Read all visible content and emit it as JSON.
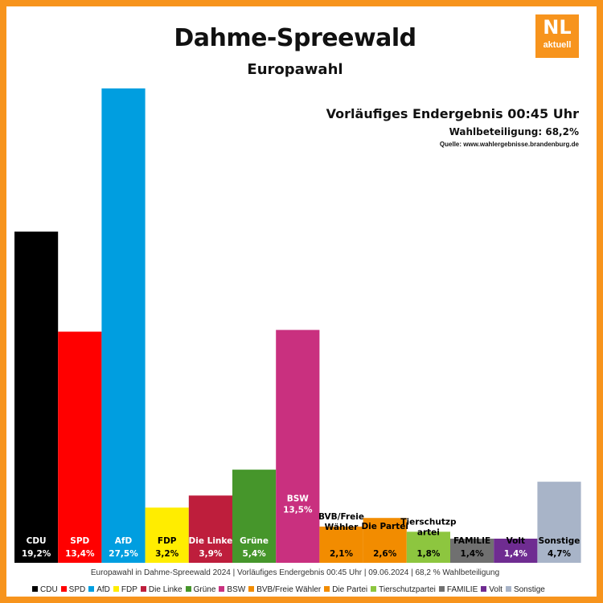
{
  "header": {
    "title": "Dahme-Spreewald",
    "subtitle": "Europawahl",
    "logo_main": "NL",
    "logo_sub": "aktuell"
  },
  "info": {
    "result_title": "Vorläufiges Endergebnis 00:45 Uhr",
    "turnout_label": "Wahlbeteiligung:",
    "turnout_value": "68,2%",
    "source": "Quelle: www.wahlergebnisse.brandenburg.de"
  },
  "footer": {
    "text": "Europawahl in Dahme-Spreewald 2024 | Vorläufiges Endergebnis 00:45 Uhr | 09.06.2024 | 68,2 % Wahlbeteiligung"
  },
  "chart_data": {
    "type": "bar",
    "title": "Dahme-Spreewald",
    "subtitle": "Europawahl",
    "ylim": [
      0,
      27.5
    ],
    "grid": false,
    "legend_position": "bottom",
    "categories": [
      "CDU",
      "SPD",
      "AfD",
      "FDP",
      "Die Linke",
      "Grüne",
      "BSW",
      "BVB/Freie Wähler",
      "Die Partei",
      "Tierschutzpartei",
      "FAMILIE",
      "Volt",
      "Sonstige"
    ],
    "label_lines": [
      [
        "CDU"
      ],
      [
        "SPD"
      ],
      [
        "AfD"
      ],
      [
        "FDP"
      ],
      [
        "Die Linke"
      ],
      [
        "Grüne"
      ],
      [
        "BSW"
      ],
      [
        "BVB/Freie",
        "Wähler"
      ],
      [
        "Die Partei"
      ],
      [
        "Tierschutzp",
        "artei"
      ],
      [
        "FAMILIE"
      ],
      [
        "Volt"
      ],
      [
        "Sonstige"
      ]
    ],
    "values": [
      19.2,
      13.4,
      27.5,
      3.2,
      3.9,
      5.4,
      13.5,
      2.1,
      2.6,
      1.8,
      1.4,
      1.4,
      4.7
    ],
    "value_labels": [
      "19,2%",
      "13,4%",
      "27,5%",
      "3,2%",
      "3,9%",
      "5,4%",
      "13,5%",
      "2,1%",
      "2,6%",
      "1,8%",
      "1,4%",
      "1,4%",
      "4,7%"
    ],
    "colors": [
      "#000000",
      "#ff0000",
      "#009ee0",
      "#ffed00",
      "#be1e3c",
      "#46962b",
      "#c9307f",
      "#f28c00",
      "#f28c00",
      "#8dc63f",
      "#707070",
      "#6f2c91",
      "#a8b4c8"
    ],
    "label_colors": [
      "#ffffff",
      "#ffffff",
      "#ffffff",
      "#000000",
      "#ffffff",
      "#ffffff",
      "#ffffff",
      "#000000",
      "#000000",
      "#000000",
      "#000000",
      "#ffffff",
      "#000000"
    ],
    "legend": [
      "CDU",
      "SPD",
      "AfD",
      "FDP",
      "Die Linke",
      "Grüne",
      "BSW",
      "BVB/Freie Wähler",
      "Die Partei",
      "Tierschutzpartei",
      "FAMILIE",
      "Volt",
      "Sonstige"
    ]
  }
}
